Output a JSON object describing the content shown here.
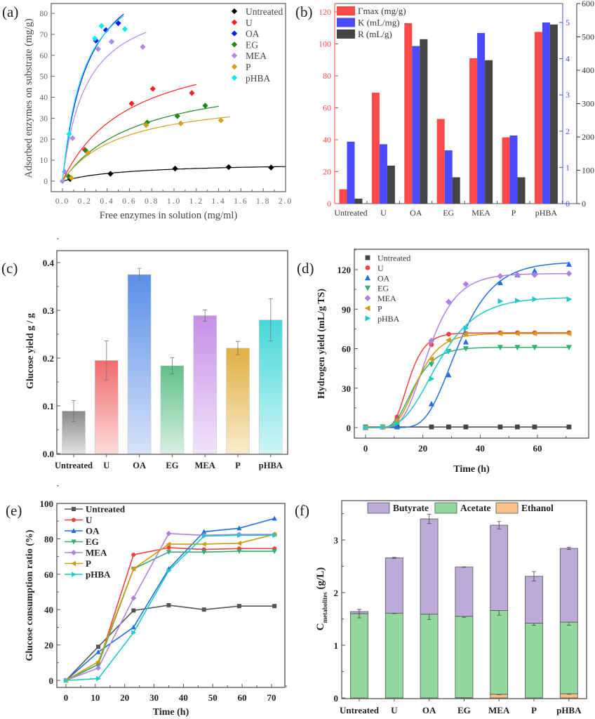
{
  "chart_data": [
    {
      "panel_label": "(a)",
      "type": "scatter",
      "xlabel": "Free enzymes in solution (mg/ml)",
      "ylabel": "Adsorbed enzymes on substrate (mg/g)",
      "xlim": [
        0,
        2.0
      ],
      "ylim": [
        0,
        80
      ],
      "xticks": [
        "0.0",
        "0.2",
        "0.4",
        "0.6",
        "0.8",
        "1.0",
        "1.2",
        "1.4",
        "1.6",
        "1.8",
        "2.0"
      ],
      "yticks": [
        "0",
        "10",
        "20",
        "30",
        "40",
        "50",
        "60",
        "70",
        "80"
      ],
      "legend_position": "top-right",
      "fit": "Langmuir curve per series",
      "series": [
        {
          "name": "Untreated",
          "color": "#000000",
          "x": [
            0.07,
            0.43,
            1.01,
            1.49,
            1.87
          ],
          "y": [
            1,
            3.5,
            6,
            6.7,
            6.5
          ],
          "fit_xmax": 2.0
        },
        {
          "name": "U",
          "color": "#ff2020",
          "x": [
            0.2,
            0.62,
            0.81,
            1.16
          ],
          "y": [
            15,
            37,
            44,
            42
          ],
          "fit_xmax": 1.2
        },
        {
          "name": "OA",
          "color": "#0a1aff",
          "x": [
            0.3,
            0.39,
            0.5
          ],
          "y": [
            67,
            72,
            75.3
          ],
          "fit_xmax": 0.55
        },
        {
          "name": "EG",
          "color": "#1a8a1a",
          "x": [
            0.05,
            0.21,
            0.76,
            1.03,
            1.28
          ],
          "y": [
            2.5,
            14.5,
            28,
            31,
            36
          ],
          "fit_xmax": 1.4
        },
        {
          "name": "MEA",
          "color": "#b088e0",
          "x": [
            0,
            0.02,
            0.09,
            0.32,
            0.44,
            0.72
          ],
          "y": [
            0,
            4.5,
            20.5,
            63,
            66.5,
            64
          ],
          "fit_xmax": 0.75
        },
        {
          "name": "P",
          "color": "#d4a020",
          "x": [
            0.08,
            0.23,
            0.75,
            1.06,
            1.42
          ],
          "y": [
            1.5,
            13.5,
            26.7,
            27.5,
            29
          ],
          "fit_xmax": 1.5
        },
        {
          "name": "pHBA",
          "color": "#10e8f0",
          "x": [
            0.06,
            0.29,
            0.35,
            0.56
          ],
          "y": [
            22.5,
            68,
            74,
            72.5
          ],
          "fit_xmax": 0.55
        }
      ]
    },
    {
      "panel_label": "(b)",
      "type": "bar",
      "categories": [
        "Untreated",
        "U",
        "OA",
        "EG",
        "MEA",
        "P",
        "pHBA"
      ],
      "legend_position": "top-left",
      "axes": {
        "left": {
          "ylim": [
            0,
            120
          ],
          "ticks": [
            "0",
            "20",
            "40",
            "60",
            "80",
            "100",
            "120"
          ],
          "color": "#ff4a4a"
        },
        "right_inner": {
          "ylim": [
            0,
            5.5
          ],
          "ticks": [
            "0",
            "1",
            "2",
            "3",
            "4",
            "5"
          ],
          "color": "#4a4aff"
        },
        "right_outer": {
          "ylim": [
            0,
            600
          ],
          "ticks": [
            "0",
            "100",
            "200",
            "300",
            "400",
            "500",
            "600"
          ],
          "color": "#333333"
        }
      },
      "series": [
        {
          "name": "Γmax (mg/g)",
          "axis": "left",
          "color": "#ff4a4a",
          "values": [
            9,
            69.5,
            113,
            53,
            91,
            41.5,
            107.5
          ]
        },
        {
          "name": "K (mL/mg)",
          "axis": "right_inner",
          "color": "#4a4aff",
          "values": [
            1.71,
            1.64,
            4.35,
            1.47,
            4.71,
            1.88,
            5.0
          ]
        },
        {
          "name": "R (mL/g)",
          "axis": "right_outer",
          "color": "#444444",
          "values": [
            15,
            114,
            493,
            79,
            430,
            79,
            537
          ]
        }
      ]
    },
    {
      "panel_label": "(c)",
      "type": "bar",
      "ylabel": "Glucose yield  g / g",
      "ylim": [
        0,
        0.42
      ],
      "yticks": [
        "0.0",
        "0.1",
        "0.2",
        "0.3",
        "0.4"
      ],
      "categories": [
        "Untreated",
        "U",
        "OA",
        "EG",
        "MEA",
        "P",
        "pHBA"
      ],
      "values": [
        0.089,
        0.195,
        0.375,
        0.184,
        0.289,
        0.221,
        0.28
      ],
      "errors": [
        0.022,
        0.041,
        0.013,
        0.017,
        0.012,
        0.014,
        0.044
      ],
      "colors": [
        "#888888",
        "#f06c6c",
        "#5b8fe6",
        "#5fbf88",
        "#c590e6",
        "#e0b040",
        "#45d8d8"
      ]
    },
    {
      "panel_label": "(d)",
      "type": "line",
      "xlabel": "Time (h)",
      "ylabel": "Hydrogen yield (mL/g TS)",
      "xlim": [
        -3,
        77
      ],
      "ylim": [
        -8,
        135
      ],
      "xticks": [
        "0",
        "20",
        "40",
        "60"
      ],
      "yticks": [
        "0",
        "30",
        "60",
        "90",
        "120"
      ],
      "legend_position": "top-left",
      "x": [
        0,
        6,
        11,
        23,
        29,
        35,
        47,
        53,
        59,
        71
      ],
      "series": [
        {
          "name": "Untreated",
          "marker": "square",
          "color": "#444444",
          "values": [
            0.5,
            0.5,
            0.5,
            0.5,
            0.5,
            0.5,
            0.5,
            0.5,
            0.5,
            0.5
          ]
        },
        {
          "name": "U",
          "marker": "circle",
          "color": "#f04040",
          "values": [
            0,
            0.5,
            8,
            63,
            71,
            71.5,
            72,
            72,
            72,
            72
          ]
        },
        {
          "name": "OA",
          "marker": "triangle-up",
          "color": "#2070e0",
          "values": [
            0,
            0.5,
            0.5,
            18,
            40,
            65,
            110,
            116,
            119,
            124
          ]
        },
        {
          "name": "EG",
          "marker": "triangle-down",
          "color": "#30b070",
          "values": [
            0,
            0.5,
            5,
            48,
            58,
            60,
            61,
            61,
            61,
            61
          ]
        },
        {
          "name": "MEA",
          "marker": "diamond",
          "color": "#b080e0",
          "values": [
            0,
            0.5,
            5,
            66,
            95.5,
            109,
            115,
            116,
            116,
            117
          ]
        },
        {
          "name": "P",
          "marker": "triangle-left",
          "color": "#d09a10",
          "values": [
            0,
            0.5,
            5,
            52,
            66.5,
            71,
            71.5,
            71.5,
            71.5,
            71.5
          ]
        },
        {
          "name": "pHBA",
          "marker": "triangle-right",
          "color": "#20c8c8",
          "values": [
            0,
            0.5,
            3,
            37,
            58,
            75.5,
            96,
            96.5,
            97.5,
            97.5
          ]
        }
      ]
    },
    {
      "panel_label": "(e)",
      "type": "line",
      "xlabel": "Time (h)",
      "ylabel": "Glucose consumption ratio (%)",
      "xlim": [
        -3,
        75
      ],
      "ylim": [
        -4,
        100
      ],
      "xticks": [
        "0",
        "10",
        "20",
        "30",
        "40",
        "50",
        "60",
        "70"
      ],
      "yticks": [
        "0",
        "20",
        "40",
        "60",
        "80",
        "100"
      ],
      "legend_position": "top-left",
      "x": [
        0,
        11,
        23,
        35,
        47,
        59,
        71
      ],
      "series": [
        {
          "name": "Untreated",
          "marker": "square",
          "color": "#555555",
          "values": [
            0,
            19,
            39.5,
            42.5,
            40,
            42,
            42
          ]
        },
        {
          "name": "U",
          "marker": "circle",
          "color": "#f04040",
          "values": [
            0,
            9,
            71,
            75,
            74,
            74.5,
            74.5
          ]
        },
        {
          "name": "OA",
          "marker": "triangle-up",
          "color": "#2070e0",
          "values": [
            0,
            16,
            30,
            63,
            84,
            86,
            91.5
          ]
        },
        {
          "name": "EG",
          "marker": "triangle-down",
          "color": "#30b070",
          "values": [
            0,
            9,
            63,
            72.5,
            72.5,
            73,
            73
          ]
        },
        {
          "name": "MEA",
          "marker": "diamond",
          "color": "#b080e0",
          "values": [
            0,
            7,
            46.5,
            83,
            82,
            82.5,
            82.5
          ]
        },
        {
          "name": "P",
          "marker": "triangle-left",
          "color": "#d09a10",
          "values": [
            0,
            10.5,
            63,
            77,
            77,
            77.5,
            82.5
          ]
        },
        {
          "name": "pHBA",
          "marker": "triangle-right",
          "color": "#20c8c8",
          "values": [
            0,
            1,
            27,
            62,
            81.5,
            82,
            82
          ]
        }
      ]
    },
    {
      "panel_label": "(f)",
      "type": "bar",
      "stacked": true,
      "ylabel_main": "C",
      "ylabel_sub": "metabolites",
      "ylabel_unit": " (g/L)",
      "ylim": [
        0,
        3.75
      ],
      "yticks": [
        "0",
        "1",
        "2",
        "3"
      ],
      "legend_position": "top",
      "categories": [
        "Untreated",
        "U",
        "OA",
        "EG",
        "MEA",
        "P",
        "pHBA"
      ],
      "series": [
        {
          "name": "Ethanol",
          "color": "#f9c08a",
          "values": [
            0,
            0,
            0,
            0.005,
            0.07,
            0,
            0.08
          ],
          "errors": [
            0,
            0,
            0,
            0,
            0.01,
            0,
            0.01
          ]
        },
        {
          "name": "Acetate",
          "color": "#92d89c",
          "values": [
            1.6,
            1.61,
            1.59,
            1.545,
            1.59,
            1.42,
            1.36
          ],
          "errors": [
            0.08,
            0.01,
            0.1,
            0.02,
            0.09,
            0.04,
            0.06
          ]
        },
        {
          "name": "Butyrate",
          "color": "#bcaad8",
          "values": [
            0.04,
            1.05,
            1.81,
            0.935,
            1.62,
            0.89,
            1.4
          ],
          "errors": [
            0.04,
            0.01,
            0.09,
            0.005,
            0.07,
            0.09,
            0.02
          ]
        }
      ]
    }
  ]
}
